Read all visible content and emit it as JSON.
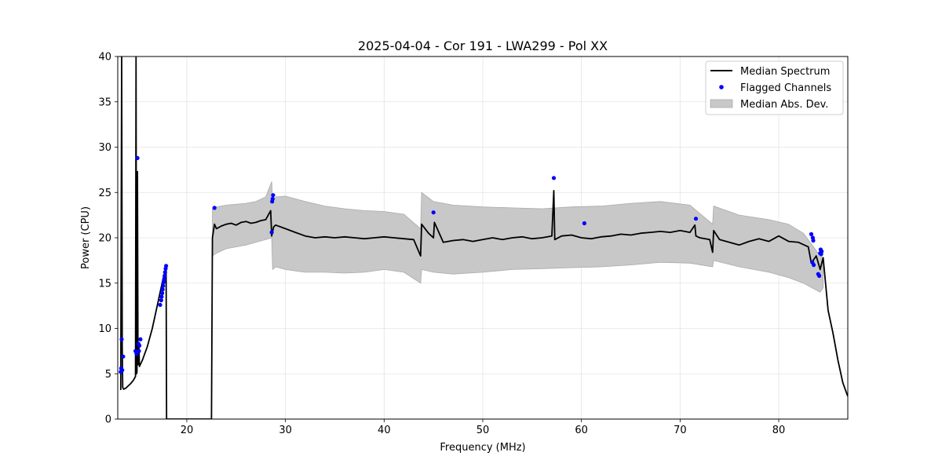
{
  "chart_data": {
    "type": "line",
    "title": "2025-04-04 - Cor 191 - LWA299 - Pol XX",
    "xlabel": "Frequency (MHz)",
    "ylabel": "Power (CPU)",
    "xlim": [
      13.0,
      87.0
    ],
    "ylim": [
      0,
      40
    ],
    "xticks": [
      20,
      30,
      40,
      50,
      60,
      70,
      80
    ],
    "yticks": [
      0,
      5,
      10,
      15,
      20,
      25,
      30,
      35,
      40
    ],
    "grid": true,
    "legend_position": "top-right",
    "legend": [
      {
        "label": "Median Spectrum",
        "kind": "line",
        "color": "#000000"
      },
      {
        "label": "Flagged Channels",
        "kind": "marker",
        "color": "#0000ff"
      },
      {
        "label": "Median Abs. Dev.",
        "kind": "band",
        "color": "#c8c8c8"
      }
    ],
    "series": [
      {
        "name": "Median Spectrum",
        "kind": "line",
        "color": "#000000",
        "x": [
          13.3,
          13.4,
          13.45,
          13.5,
          13.6,
          13.8,
          14.0,
          14.3,
          14.6,
          14.8,
          14.85,
          14.9,
          14.95,
          15.0,
          15.05,
          15.1,
          15.15,
          15.2,
          15.5,
          16.0,
          16.5,
          17.0,
          17.3,
          17.6,
          17.9,
          17.95,
          18.0,
          22.5,
          22.6,
          22.8,
          23.0,
          23.5,
          24.0,
          24.5,
          25.0,
          25.5,
          26.0,
          26.5,
          27.0,
          27.5,
          28.0,
          28.5,
          28.6,
          28.8,
          29.0,
          30.0,
          31.0,
          32.0,
          33.0,
          34.0,
          35.0,
          36.0,
          37.0,
          38.0,
          39.0,
          40.0,
          41.0,
          42.0,
          43.0,
          43.7,
          43.8,
          44.5,
          45.0,
          45.1,
          46.0,
          47.0,
          48.0,
          49.0,
          50.0,
          51.0,
          52.0,
          53.0,
          54.0,
          55.0,
          56.0,
          57.0,
          57.2,
          57.3,
          58.0,
          59.0,
          60.0,
          61.0,
          62.0,
          63.0,
          64.0,
          65.0,
          66.0,
          67.0,
          68.0,
          69.0,
          70.0,
          71.0,
          71.5,
          71.6,
          72.0,
          73.0,
          73.3,
          73.4,
          74.0,
          75.0,
          76.0,
          77.0,
          78.0,
          79.0,
          80.0,
          81.0,
          82.0,
          83.0,
          83.3,
          83.8,
          84.2,
          84.5,
          85.0,
          85.5,
          86.0,
          86.5,
          87.0
        ],
        "y": [
          3.2,
          40.0,
          8.0,
          3.5,
          3.3,
          3.4,
          3.6,
          3.9,
          4.3,
          4.7,
          40.0,
          5.0,
          5.2,
          27.3,
          6.0,
          7.0,
          8.0,
          5.8,
          6.5,
          8.0,
          10.0,
          12.5,
          14.0,
          15.5,
          16.8,
          0.0,
          0.0,
          0.0,
          20.0,
          21.5,
          21.0,
          21.3,
          21.5,
          21.6,
          21.4,
          21.7,
          21.8,
          21.6,
          21.7,
          21.9,
          22.0,
          23.0,
          20.2,
          21.2,
          21.4,
          21.0,
          20.6,
          20.2,
          20.0,
          20.1,
          20.0,
          20.1,
          20.0,
          19.9,
          20.0,
          20.1,
          20.0,
          19.9,
          19.8,
          18.0,
          21.5,
          20.5,
          20.0,
          21.7,
          19.5,
          19.7,
          19.8,
          19.6,
          19.8,
          20.0,
          19.8,
          20.0,
          20.1,
          19.9,
          20.0,
          20.2,
          25.2,
          19.8,
          20.2,
          20.3,
          20.0,
          19.9,
          20.1,
          20.2,
          20.4,
          20.3,
          20.5,
          20.6,
          20.7,
          20.6,
          20.8,
          20.6,
          21.4,
          20.2,
          20.0,
          19.8,
          18.4,
          20.8,
          19.8,
          19.5,
          19.2,
          19.6,
          19.9,
          19.6,
          20.2,
          19.6,
          19.5,
          19.0,
          17.2,
          18.0,
          16.5,
          17.8,
          12.0,
          9.5,
          6.5,
          4.0,
          2.5
        ]
      },
      {
        "name": "Median Abs. Dev.",
        "kind": "band",
        "color": "#c8c8c8",
        "x": [
          22.6,
          23.0,
          24.0,
          25.0,
          26.0,
          27.0,
          28.0,
          28.6,
          28.7,
          29.0,
          30.0,
          32.0,
          34.0,
          36.0,
          38.0,
          40.0,
          42.0,
          43.7,
          43.8,
          45.0,
          47.0,
          50.0,
          53.0,
          56.0,
          59.0,
          62.0,
          65.0,
          68.0,
          71.0,
          73.3,
          73.4,
          76.0,
          79.0,
          81.0,
          82.5,
          84.2,
          84.5
        ],
        "upper": [
          23.2,
          23.4,
          23.6,
          23.7,
          23.8,
          24.0,
          24.5,
          26.2,
          24.0,
          24.5,
          24.6,
          24.0,
          23.5,
          23.2,
          23.0,
          22.9,
          22.6,
          21.0,
          25.0,
          24.0,
          23.6,
          23.4,
          23.3,
          23.2,
          23.4,
          23.5,
          23.8,
          24.0,
          23.6,
          21.5,
          23.5,
          22.5,
          22.0,
          21.5,
          20.5,
          18.0,
          17.8
        ],
        "lower": [
          18.0,
          18.3,
          18.8,
          19.0,
          19.2,
          19.5,
          19.8,
          20.0,
          16.5,
          16.8,
          16.5,
          16.2,
          16.2,
          16.1,
          16.2,
          16.5,
          16.2,
          15.0,
          16.5,
          16.2,
          16.0,
          16.2,
          16.5,
          16.6,
          16.7,
          16.8,
          17.0,
          17.3,
          17.2,
          16.8,
          17.5,
          16.8,
          16.2,
          15.6,
          15.0,
          14.0,
          14.5
        ]
      },
      {
        "name": "Flagged Channels",
        "kind": "scatter",
        "color": "#0000ff",
        "x": [
          13.3,
          13.35,
          13.4,
          13.45,
          13.55,
          14.8,
          14.9,
          15.0,
          15.1,
          15.15,
          15.2,
          15.3,
          17.3,
          17.4,
          17.45,
          17.5,
          17.55,
          17.6,
          17.65,
          17.7,
          17.75,
          17.8,
          17.85,
          17.9,
          22.8,
          28.6,
          28.65,
          28.7,
          28.75,
          45.0,
          57.2,
          60.3,
          71.6,
          83.3,
          83.4,
          83.45,
          83.5,
          83.55,
          84.0,
          84.1,
          84.2,
          84.25,
          84.3,
          84.35
        ],
        "y": [
          5.2,
          5.6,
          8.8,
          5.4,
          6.9,
          7.5,
          7.2,
          28.8,
          8.3,
          7.5,
          8.1,
          8.8,
          12.6,
          13.1,
          13.5,
          13.9,
          14.3,
          14.7,
          15.1,
          15.4,
          15.8,
          16.2,
          16.6,
          16.9,
          23.3,
          20.6,
          24.0,
          24.3,
          24.7,
          22.8,
          26.6,
          21.6,
          22.1,
          20.4,
          17.3,
          20.0,
          19.7,
          17.0,
          16.0,
          15.8,
          18.3,
          18.7,
          18.2,
          18.5
        ]
      }
    ]
  }
}
